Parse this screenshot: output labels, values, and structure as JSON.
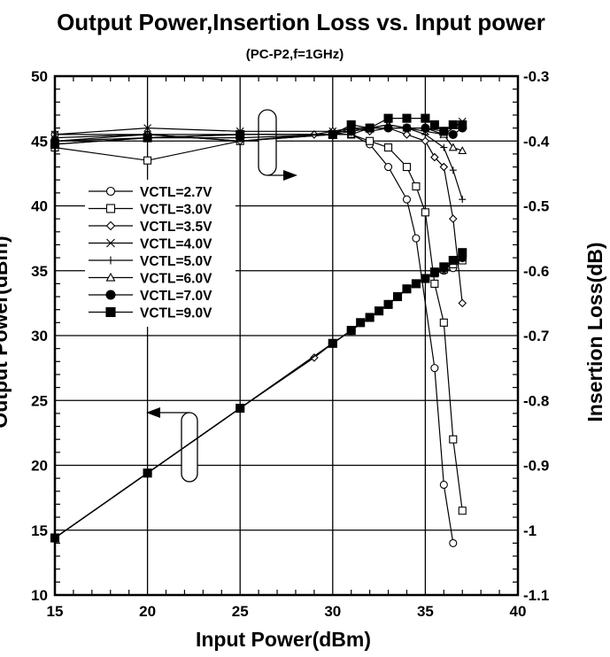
{
  "chart_data": {
    "type": "line",
    "title": "Output Power,Insertion Loss vs. Input power",
    "subtitle": "(PC-P2,f=1GHz)",
    "xlabel": "Input Power(dBm)",
    "ylabel": "Output Power(dBm)",
    "y2label": "Insertion Loss(dB)",
    "xlim": [
      15,
      40
    ],
    "ylim": [
      10,
      50
    ],
    "y2lim": [
      -1.1,
      -0.3
    ],
    "xticks": [
      "15",
      "20",
      "25",
      "30",
      "35",
      "40"
    ],
    "yticks": [
      "10",
      "15",
      "20",
      "25",
      "30",
      "35",
      "40",
      "45",
      "50"
    ],
    "y2ticks": [
      "-1.1",
      "-1",
      "-0.9",
      "-0.8",
      "-0.7",
      "-0.6",
      "-0.5",
      "-0.4",
      "-0.3"
    ],
    "grid": true,
    "legend": {
      "position": "left-middle"
    },
    "series": [
      {
        "name": "VCTL=2.7V",
        "marker": "circle-open",
        "output": [
          [
            15,
            14.4
          ],
          [
            20,
            19.4
          ],
          [
            25,
            24.4
          ],
          [
            30,
            29.4
          ],
          [
            31,
            30.4
          ],
          [
            32,
            31.4
          ],
          [
            33,
            32.4
          ],
          [
            34,
            33.6
          ],
          [
            35,
            34.4
          ],
          [
            35.5,
            34.8
          ],
          [
            36,
            35.0
          ],
          [
            36.5,
            35.2
          ]
        ],
        "loss": [
          [
            15,
            -0.39
          ],
          [
            20,
            -0.39
          ],
          [
            25,
            -0.4
          ],
          [
            30,
            -0.39
          ],
          [
            31,
            -0.39
          ],
          [
            32,
            -0.405
          ],
          [
            33,
            -0.44
          ],
          [
            34,
            -0.49
          ],
          [
            34.5,
            -0.55
          ],
          [
            35.5,
            -0.75
          ],
          [
            36,
            -0.93
          ],
          [
            36.5,
            -1.02
          ]
        ]
      },
      {
        "name": "VCTL=3.0V",
        "marker": "square-open",
        "output": [
          [
            15,
            14.4
          ],
          [
            20,
            19.4
          ],
          [
            25,
            24.4
          ],
          [
            30,
            29.4
          ],
          [
            31,
            30.4
          ],
          [
            32,
            31.4
          ],
          [
            33,
            32.4
          ],
          [
            34,
            33.6
          ],
          [
            35,
            34.4
          ],
          [
            35.5,
            34.8
          ],
          [
            36,
            35.1
          ],
          [
            36.5,
            35.5
          ],
          [
            37,
            35.8
          ]
        ],
        "loss": [
          [
            15,
            -0.41
          ],
          [
            20,
            -0.43
          ],
          [
            25,
            -0.4
          ],
          [
            30,
            -0.39
          ],
          [
            31,
            -0.39
          ],
          [
            32,
            -0.4
          ],
          [
            33,
            -0.41
          ],
          [
            34,
            -0.44
          ],
          [
            34.5,
            -0.47
          ],
          [
            35,
            -0.51
          ],
          [
            35.5,
            -0.62
          ],
          [
            36,
            -0.68
          ],
          [
            36.5,
            -0.86
          ],
          [
            37,
            -0.97
          ]
        ]
      },
      {
        "name": "VCTL=3.5V",
        "marker": "diamond-open",
        "output": [
          [
            15,
            14.4
          ],
          [
            20,
            19.4
          ],
          [
            25,
            24.4
          ],
          [
            29,
            28.3
          ],
          [
            30,
            29.4
          ],
          [
            31,
            30.4
          ],
          [
            32,
            31.4
          ],
          [
            33,
            32.4
          ],
          [
            34,
            33.6
          ],
          [
            35,
            34.4
          ],
          [
            36,
            35.2
          ],
          [
            37,
            36.0
          ]
        ],
        "loss": [
          [
            15,
            -0.4
          ],
          [
            20,
            -0.39
          ],
          [
            25,
            -0.4
          ],
          [
            29,
            -0.39
          ],
          [
            30,
            -0.385
          ],
          [
            31,
            -0.38
          ],
          [
            32,
            -0.385
          ],
          [
            33,
            -0.38
          ],
          [
            34,
            -0.39
          ],
          [
            35,
            -0.4
          ],
          [
            35.5,
            -0.425
          ],
          [
            36,
            -0.44
          ],
          [
            36.5,
            -0.52
          ],
          [
            37,
            -0.65
          ]
        ]
      },
      {
        "name": "VCTL=4.0V",
        "marker": "x",
        "output": [
          [
            15,
            14.4
          ],
          [
            20,
            19.4
          ],
          [
            25,
            24.4
          ],
          [
            30,
            29.4
          ],
          [
            31,
            30.4
          ],
          [
            32,
            31.4
          ],
          [
            33,
            32.4
          ],
          [
            34,
            33.6
          ],
          [
            35,
            34.4
          ],
          [
            36,
            35.2
          ],
          [
            37,
            36.0
          ]
        ],
        "loss": [
          [
            15,
            -0.39
          ],
          [
            20,
            -0.38
          ],
          [
            25,
            -0.385
          ],
          [
            30,
            -0.385
          ],
          [
            31,
            -0.385
          ],
          [
            32,
            -0.38
          ],
          [
            33,
            -0.375
          ],
          [
            34,
            -0.38
          ],
          [
            35,
            -0.385
          ],
          [
            36,
            -0.39
          ],
          [
            37,
            -0.37
          ]
        ]
      },
      {
        "name": "VCTL=5.0V",
        "marker": "plus",
        "output": [
          [
            15,
            14.4
          ],
          [
            20,
            19.4
          ],
          [
            25,
            24.4
          ],
          [
            30,
            29.4
          ],
          [
            31,
            30.4
          ],
          [
            32,
            31.4
          ],
          [
            33,
            32.4
          ],
          [
            34,
            33.6
          ],
          [
            35,
            34.4
          ],
          [
            36,
            35.2
          ],
          [
            37,
            36.0
          ]
        ],
        "loss": [
          [
            15,
            -0.395
          ],
          [
            20,
            -0.39
          ],
          [
            25,
            -0.39
          ],
          [
            30,
            -0.39
          ],
          [
            31,
            -0.38
          ],
          [
            32,
            -0.38
          ],
          [
            33,
            -0.38
          ],
          [
            34,
            -0.38
          ],
          [
            35,
            -0.39
          ],
          [
            36,
            -0.41
          ],
          [
            36.5,
            -0.445
          ],
          [
            37,
            -0.49
          ]
        ]
      },
      {
        "name": "VCTL=6.0V",
        "marker": "triangle-open",
        "output": [
          [
            15,
            14.4
          ],
          [
            20,
            19.4
          ],
          [
            25,
            24.4
          ],
          [
            30,
            29.4
          ],
          [
            31,
            30.4
          ],
          [
            32,
            31.4
          ],
          [
            33,
            32.4
          ],
          [
            34,
            33.6
          ],
          [
            35,
            34.4
          ],
          [
            36,
            35.2
          ],
          [
            37,
            36.0
          ]
        ],
        "loss": [
          [
            15,
            -0.405
          ],
          [
            20,
            -0.395
          ],
          [
            25,
            -0.39
          ],
          [
            30,
            -0.39
          ],
          [
            31,
            -0.39
          ],
          [
            32,
            -0.38
          ],
          [
            33,
            -0.375
          ],
          [
            34,
            -0.38
          ],
          [
            35,
            -0.38
          ],
          [
            36,
            -0.39
          ],
          [
            36.5,
            -0.41
          ],
          [
            37,
            -0.415
          ]
        ]
      },
      {
        "name": "VCTL=7.0V",
        "marker": "circle-filled",
        "output": [
          [
            15,
            14.4
          ],
          [
            20,
            19.4
          ],
          [
            25,
            24.4
          ],
          [
            30,
            29.4
          ],
          [
            31,
            30.4
          ],
          [
            32,
            31.4
          ],
          [
            33,
            32.4
          ],
          [
            34,
            33.6
          ],
          [
            35,
            34.4
          ],
          [
            36,
            35.2
          ],
          [
            37,
            36.0
          ]
        ],
        "loss": [
          [
            15,
            -0.4
          ],
          [
            20,
            -0.395
          ],
          [
            25,
            -0.395
          ],
          [
            30,
            -0.39
          ],
          [
            31,
            -0.385
          ],
          [
            32,
            -0.38
          ],
          [
            33,
            -0.38
          ],
          [
            34,
            -0.38
          ],
          [
            35,
            -0.38
          ],
          [
            36,
            -0.385
          ],
          [
            36.5,
            -0.39
          ],
          [
            37,
            -0.38
          ]
        ]
      },
      {
        "name": "VCTL=9.0V",
        "marker": "square-filled",
        "output": [
          [
            15,
            14.4
          ],
          [
            20,
            19.4
          ],
          [
            25,
            24.4
          ],
          [
            30,
            29.4
          ],
          [
            31,
            30.4
          ],
          [
            31.5,
            31.0
          ],
          [
            32,
            31.4
          ],
          [
            32.5,
            31.9
          ],
          [
            33,
            32.4
          ],
          [
            33.5,
            33.0
          ],
          [
            34,
            33.6
          ],
          [
            34.5,
            34.0
          ],
          [
            35,
            34.4
          ],
          [
            35.5,
            34.9
          ],
          [
            36,
            35.3
          ],
          [
            36.5,
            35.8
          ],
          [
            37,
            36.4
          ]
        ],
        "loss": [
          [
            15,
            -0.405
          ],
          [
            20,
            -0.395
          ],
          [
            25,
            -0.39
          ],
          [
            30,
            -0.39
          ],
          [
            31,
            -0.375
          ],
          [
            32,
            -0.38
          ],
          [
            33,
            -0.365
          ],
          [
            34,
            -0.365
          ],
          [
            35,
            -0.365
          ],
          [
            35.5,
            -0.375
          ],
          [
            36,
            -0.385
          ],
          [
            36.5,
            -0.375
          ],
          [
            37,
            -0.375
          ]
        ]
      }
    ]
  }
}
